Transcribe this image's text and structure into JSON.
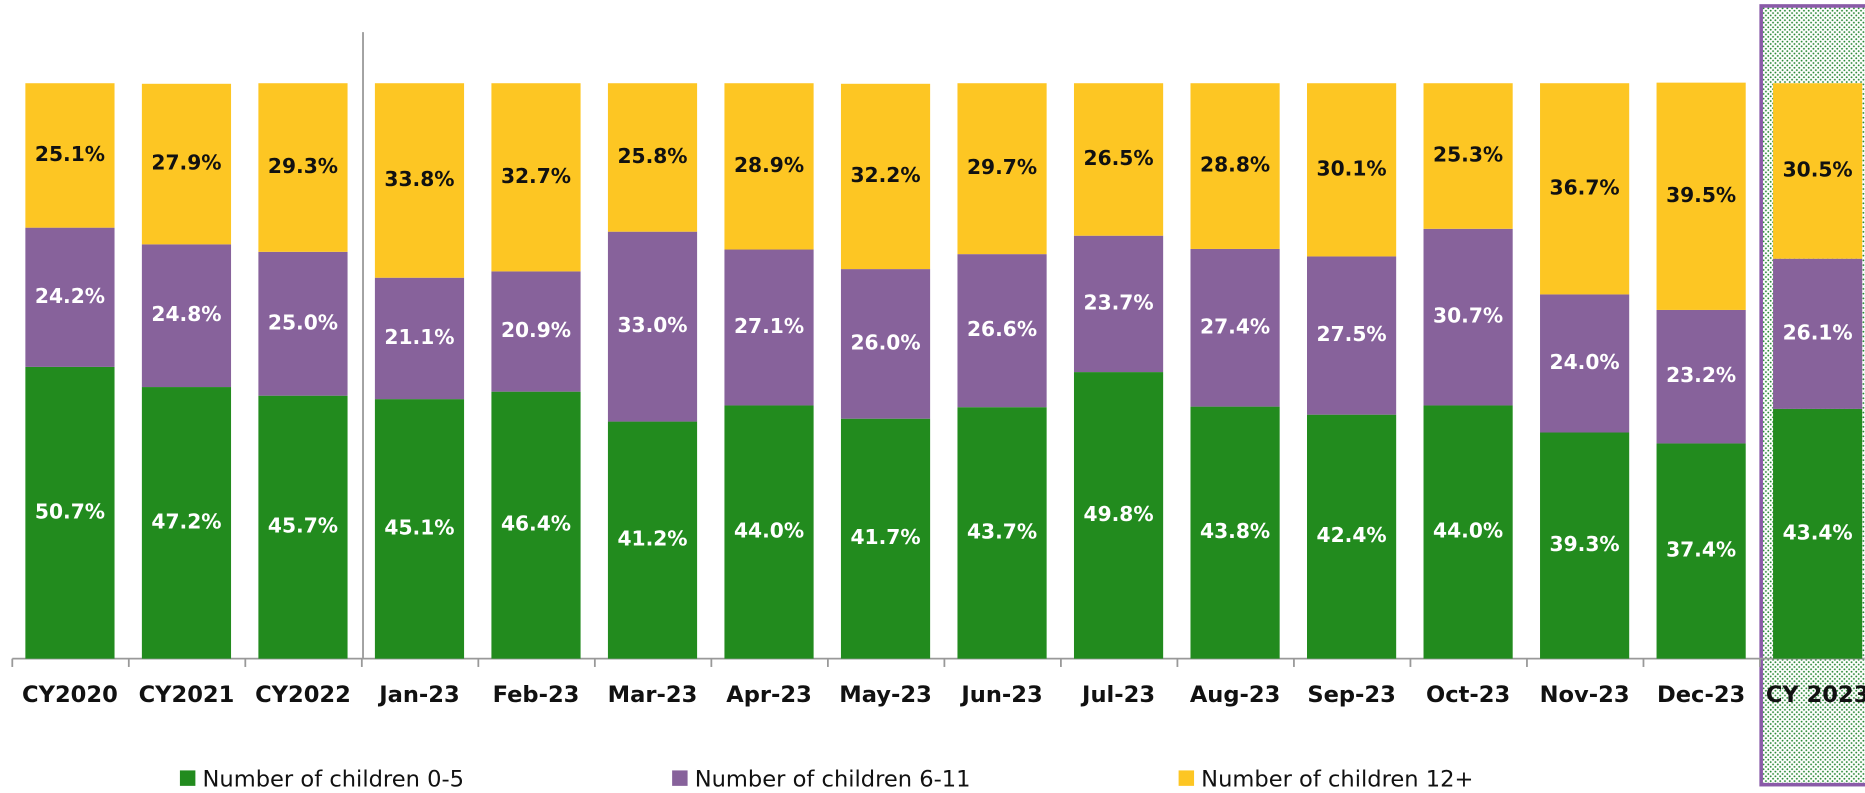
{
  "chart_data": {
    "type": "stacked-bar",
    "categories": [
      "CY2020",
      "CY2021",
      "CY2022",
      "Jan-23",
      "Feb-23",
      "Mar-23",
      "Apr-23",
      "May-23",
      "Jun-23",
      "Jul-23",
      "Aug-23",
      "Sep-23",
      "Oct-23",
      "Nov-23",
      "Dec-23",
      "CY 2023"
    ],
    "ylim": [
      0,
      100
    ],
    "series": [
      {
        "name": "Number of children 0-5",
        "color": "#228b1e",
        "values": [
          50.7,
          47.2,
          45.7,
          45.1,
          46.4,
          41.2,
          44.0,
          41.7,
          43.7,
          49.8,
          43.8,
          42.4,
          44.0,
          39.3,
          37.4,
          43.4
        ],
        "value_labels": [
          "50.7%",
          "47.2%",
          "45.7%",
          "45.1%",
          "46.4%",
          "41.2%",
          "44.0%",
          "41.7%",
          "43.7%",
          "49.8%",
          "43.8%",
          "42.4%",
          "44.0%",
          "39.3%",
          "37.4%",
          "43.4%"
        ]
      },
      {
        "name": "Number of children 6-11",
        "color": "#87629b",
        "values": [
          24.2,
          24.8,
          25.0,
          21.1,
          20.9,
          33.0,
          27.1,
          26.0,
          26.6,
          23.7,
          27.4,
          27.5,
          30.7,
          24.0,
          23.2,
          26.1
        ],
        "value_labels": [
          "24.2%",
          "24.8%",
          "25.0%",
          "21.1%",
          "20.9%",
          "33.0%",
          "27.1%",
          "26.0%",
          "26.6%",
          "23.7%",
          "27.4%",
          "27.5%",
          "30.7%",
          "24.0%",
          "23.2%",
          "26.1%"
        ]
      },
      {
        "name": "Number of children 12+",
        "color": "#fdc623",
        "values": [
          25.1,
          27.9,
          29.3,
          33.8,
          32.7,
          25.8,
          28.9,
          32.2,
          29.7,
          26.5,
          28.8,
          30.1,
          25.3,
          36.7,
          39.5,
          30.5
        ],
        "value_labels": [
          "25.1%",
          "27.9%",
          "29.3%",
          "33.8%",
          "32.7%",
          "25.8%",
          "28.9%",
          "32.2%",
          "29.7%",
          "26.5%",
          "28.8%",
          "30.1%",
          "25.3%",
          "36.7%",
          "39.5%",
          "30.5%"
        ]
      }
    ]
  }
}
